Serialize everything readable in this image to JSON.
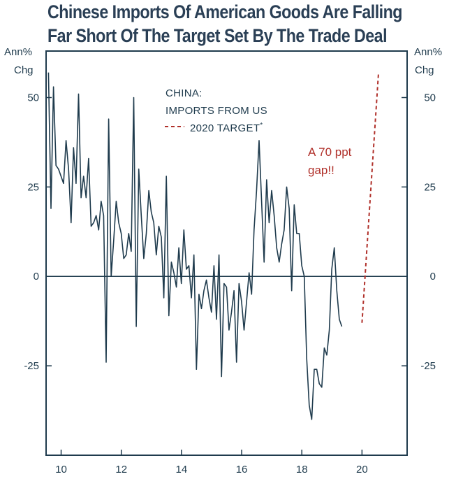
{
  "chart_data": {
    "type": "line",
    "title_line1": "Chinese Imports Of American Goods Are Falling",
    "title_line2": "Far Short Of The Target Set By The Trade Deal",
    "ylabel_left_1": "Ann%",
    "ylabel_left_2": "Chg",
    "ylabel_right_1": "Ann%",
    "ylabel_right_2": "Chg",
    "ylim": [
      -50,
      63
    ],
    "xlim": [
      2009.5,
      2021.5
    ],
    "yticks": [
      {
        "value": 50,
        "label": "50"
      },
      {
        "value": 25,
        "label": "25"
      },
      {
        "value": 0,
        "label": "0"
      },
      {
        "value": -25,
        "label": "-25"
      }
    ],
    "xticks": [
      {
        "value": 2010,
        "label": "10"
      },
      {
        "value": 2012,
        "label": "12"
      },
      {
        "value": 2014,
        "label": "14"
      },
      {
        "value": 2016,
        "label": "16"
      },
      {
        "value": 2018,
        "label": "18"
      },
      {
        "value": 2020,
        "label": "20"
      }
    ],
    "legend": {
      "heading_1": "CHINA:",
      "heading_2": "IMPORTS FROM US",
      "target_label": "2020 TARGET",
      "target_marker": "*",
      "position": "top-center"
    },
    "annotation_1": "A 70 ppt",
    "annotation_2": "gap!!",
    "colors": {
      "actual": "#1f3b4d",
      "target": "#b0302a",
      "zero_line": "#1f3b4d"
    },
    "series": [
      {
        "name": "IMPORTS FROM US",
        "start_year": 2009.58,
        "step_months": 1,
        "values": [
          57,
          19,
          53,
          31,
          30,
          28,
          26,
          38,
          30,
          15,
          36,
          26,
          51,
          22,
          28,
          22,
          33,
          14,
          15,
          17,
          13,
          21,
          17,
          -24,
          44,
          0,
          10,
          21,
          15,
          12,
          5,
          6,
          12,
          7,
          50,
          -14,
          30,
          17,
          5,
          12,
          24,
          18,
          15,
          6,
          14,
          11,
          -6,
          28,
          -11,
          4,
          1,
          -3,
          8,
          -2,
          13,
          2,
          3,
          -6,
          6,
          -26,
          -5,
          -9,
          -4,
          -1,
          -6,
          -10,
          3,
          -12,
          6,
          -28,
          -2,
          -3,
          -15,
          -10,
          -4,
          -24,
          -2,
          -7,
          -15,
          -7,
          1,
          -5,
          13,
          24,
          38,
          21,
          4,
          27,
          15,
          24,
          17,
          8,
          4,
          9,
          13,
          25,
          19,
          -4,
          20,
          12,
          12,
          3,
          0,
          -23,
          -36,
          -40,
          -26,
          -26,
          -30,
          -31,
          -20,
          -22,
          -15,
          2,
          8,
          -4,
          -12,
          -14
        ],
        "style": "solid"
      },
      {
        "name": "2020 TARGET",
        "points": [
          [
            2020.0,
            -13
          ],
          [
            2020.55,
            57
          ]
        ],
        "style": "dashed"
      }
    ]
  }
}
